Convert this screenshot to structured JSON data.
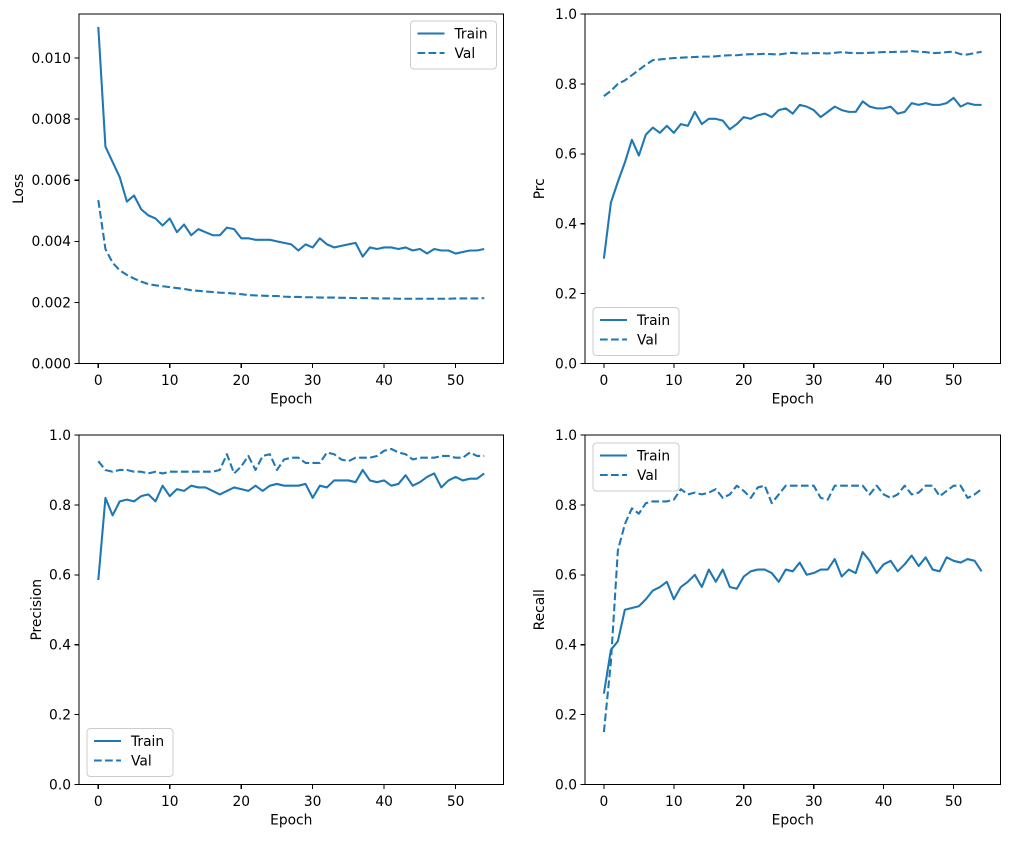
{
  "figure": {
    "background": "#ffffff",
    "line_color": "#1f77b4",
    "legend_border_color": "#cccccc",
    "text_color": "#000000"
  },
  "epochs": [
    0,
    1,
    2,
    3,
    4,
    5,
    6,
    7,
    8,
    9,
    10,
    11,
    12,
    13,
    14,
    15,
    16,
    17,
    18,
    19,
    20,
    21,
    22,
    23,
    24,
    25,
    26,
    27,
    28,
    29,
    30,
    31,
    32,
    33,
    34,
    35,
    36,
    37,
    38,
    39,
    40,
    41,
    42,
    43,
    44,
    45,
    46,
    47,
    48,
    49,
    50,
    51,
    52,
    53,
    54
  ],
  "chart_data": [
    {
      "type": "line",
      "ylabel": "Loss",
      "xlabel": "Epoch",
      "xlim": [
        -2.7,
        56.7
      ],
      "ylim": [
        0,
        0.011444
      ],
      "xticks": [
        0,
        10,
        20,
        30,
        40,
        50
      ],
      "yticks": [
        0,
        0.002,
        0.004,
        0.006,
        0.008,
        0.01
      ],
      "ytick_labels": [
        "0.000",
        "0.002",
        "0.004",
        "0.006",
        "0.008",
        "0.010"
      ],
      "legend_loc": "upper right",
      "series": [
        {
          "name": "Train",
          "style": "solid",
          "values": [
            0.01102,
            0.0071,
            0.0066,
            0.0061,
            0.0053,
            0.0055,
            0.00505,
            0.00485,
            0.00475,
            0.00452,
            0.00475,
            0.0043,
            0.00455,
            0.0042,
            0.0044,
            0.0043,
            0.0042,
            0.0042,
            0.00445,
            0.0044,
            0.0041,
            0.0041,
            0.00405,
            0.00405,
            0.00405,
            0.004,
            0.00395,
            0.0039,
            0.0037,
            0.0039,
            0.0038,
            0.0041,
            0.0039,
            0.0038,
            0.00385,
            0.0039,
            0.00395,
            0.0035,
            0.0038,
            0.00375,
            0.0038,
            0.0038,
            0.00375,
            0.0038,
            0.0037,
            0.00375,
            0.0036,
            0.00375,
            0.0037,
            0.0037,
            0.0036,
            0.00365,
            0.0037,
            0.0037,
            0.00375
          ]
        },
        {
          "name": "Val",
          "style": "dashed",
          "values": [
            0.00535,
            0.00375,
            0.0033,
            0.00305,
            0.0029,
            0.00278,
            0.00268,
            0.0026,
            0.00256,
            0.00253,
            0.0025,
            0.00247,
            0.00244,
            0.0024,
            0.00238,
            0.00236,
            0.00234,
            0.00232,
            0.00231,
            0.00229,
            0.00227,
            0.00224,
            0.00223,
            0.00222,
            0.00221,
            0.00221,
            0.00219,
            0.00218,
            0.00218,
            0.00217,
            0.00217,
            0.00216,
            0.00216,
            0.00216,
            0.00215,
            0.00215,
            0.00214,
            0.00214,
            0.00214,
            0.00213,
            0.00213,
            0.00213,
            0.00212,
            0.00212,
            0.00212,
            0.00212,
            0.00212,
            0.00212,
            0.00212,
            0.00212,
            0.00213,
            0.00213,
            0.00213,
            0.00213,
            0.00214
          ]
        }
      ]
    },
    {
      "type": "line",
      "ylabel": "Prc",
      "xlabel": "Epoch",
      "xlim": [
        -2.7,
        56.7
      ],
      "ylim": [
        0,
        1.0
      ],
      "xticks": [
        0,
        10,
        20,
        30,
        40,
        50
      ],
      "yticks": [
        0,
        0.2,
        0.4,
        0.6,
        0.8,
        1.0
      ],
      "ytick_labels": [
        "0.0",
        "0.2",
        "0.4",
        "0.6",
        "0.8",
        "1.0"
      ],
      "legend_loc": "lower left",
      "series": [
        {
          "name": "Train",
          "style": "solid",
          "values": [
            0.3,
            0.46,
            0.52,
            0.575,
            0.64,
            0.595,
            0.655,
            0.675,
            0.66,
            0.68,
            0.66,
            0.685,
            0.68,
            0.72,
            0.685,
            0.7,
            0.7,
            0.695,
            0.67,
            0.685,
            0.705,
            0.7,
            0.71,
            0.715,
            0.705,
            0.725,
            0.73,
            0.715,
            0.74,
            0.735,
            0.725,
            0.705,
            0.72,
            0.735,
            0.725,
            0.72,
            0.72,
            0.75,
            0.735,
            0.73,
            0.73,
            0.735,
            0.715,
            0.72,
            0.745,
            0.74,
            0.745,
            0.74,
            0.74,
            0.745,
            0.76,
            0.735,
            0.745,
            0.74,
            0.74
          ]
        },
        {
          "name": "Val",
          "style": "dashed",
          "values": [
            0.765,
            0.78,
            0.8,
            0.81,
            0.825,
            0.84,
            0.855,
            0.868,
            0.87,
            0.872,
            0.874,
            0.875,
            0.876,
            0.877,
            0.878,
            0.878,
            0.879,
            0.881,
            0.882,
            0.882,
            0.884,
            0.885,
            0.885,
            0.886,
            0.885,
            0.884,
            0.887,
            0.889,
            0.887,
            0.887,
            0.888,
            0.888,
            0.887,
            0.889,
            0.891,
            0.889,
            0.888,
            0.888,
            0.889,
            0.89,
            0.891,
            0.891,
            0.892,
            0.892,
            0.894,
            0.892,
            0.891,
            0.888,
            0.889,
            0.891,
            0.892,
            0.885,
            0.884,
            0.888,
            0.892
          ]
        }
      ]
    },
    {
      "type": "line",
      "ylabel": "Precision",
      "xlabel": "Epoch",
      "xlim": [
        -2.7,
        56.7
      ],
      "ylim": [
        0,
        1.0
      ],
      "xticks": [
        0,
        10,
        20,
        30,
        40,
        50
      ],
      "yticks": [
        0,
        0.2,
        0.4,
        0.6,
        0.8,
        1.0
      ],
      "ytick_labels": [
        "0.0",
        "0.2",
        "0.4",
        "0.6",
        "0.8",
        "1.0"
      ],
      "legend_loc": "lower left",
      "series": [
        {
          "name": "Train",
          "style": "solid",
          "values": [
            0.585,
            0.82,
            0.77,
            0.81,
            0.815,
            0.81,
            0.825,
            0.83,
            0.81,
            0.855,
            0.825,
            0.845,
            0.84,
            0.855,
            0.85,
            0.85,
            0.84,
            0.83,
            0.84,
            0.85,
            0.845,
            0.84,
            0.855,
            0.84,
            0.855,
            0.86,
            0.855,
            0.855,
            0.855,
            0.86,
            0.82,
            0.855,
            0.85,
            0.87,
            0.87,
            0.87,
            0.865,
            0.9,
            0.87,
            0.865,
            0.87,
            0.855,
            0.86,
            0.885,
            0.855,
            0.865,
            0.88,
            0.89,
            0.85,
            0.87,
            0.88,
            0.87,
            0.875,
            0.875,
            0.89
          ]
        },
        {
          "name": "Val",
          "style": "dashed",
          "values": [
            0.925,
            0.9,
            0.895,
            0.9,
            0.9,
            0.895,
            0.895,
            0.89,
            0.895,
            0.89,
            0.895,
            0.895,
            0.895,
            0.895,
            0.895,
            0.895,
            0.895,
            0.9,
            0.945,
            0.89,
            0.91,
            0.94,
            0.9,
            0.94,
            0.945,
            0.9,
            0.93,
            0.935,
            0.935,
            0.92,
            0.92,
            0.92,
            0.95,
            0.945,
            0.93,
            0.925,
            0.935,
            0.935,
            0.935,
            0.94,
            0.955,
            0.96,
            0.95,
            0.945,
            0.93,
            0.935,
            0.935,
            0.935,
            0.94,
            0.94,
            0.935,
            0.935,
            0.95,
            0.94,
            0.94
          ]
        }
      ]
    },
    {
      "type": "line",
      "ylabel": "Recall",
      "xlabel": "Epoch",
      "xlim": [
        -2.7,
        56.7
      ],
      "ylim": [
        0,
        1.0
      ],
      "xticks": [
        0,
        10,
        20,
        30,
        40,
        50
      ],
      "yticks": [
        0,
        0.2,
        0.4,
        0.6,
        0.8,
        1.0
      ],
      "ytick_labels": [
        "0.0",
        "0.2",
        "0.4",
        "0.6",
        "0.8",
        "1.0"
      ],
      "legend_loc": "upper left",
      "series": [
        {
          "name": "Train",
          "style": "solid",
          "values": [
            0.26,
            0.385,
            0.41,
            0.5,
            0.505,
            0.51,
            0.53,
            0.555,
            0.565,
            0.58,
            0.53,
            0.565,
            0.58,
            0.6,
            0.565,
            0.615,
            0.58,
            0.615,
            0.565,
            0.56,
            0.595,
            0.61,
            0.615,
            0.615,
            0.605,
            0.58,
            0.615,
            0.61,
            0.635,
            0.6,
            0.605,
            0.615,
            0.615,
            0.645,
            0.595,
            0.615,
            0.605,
            0.665,
            0.64,
            0.605,
            0.63,
            0.64,
            0.61,
            0.63,
            0.655,
            0.625,
            0.65,
            0.615,
            0.61,
            0.65,
            0.64,
            0.635,
            0.645,
            0.64,
            0.61
          ]
        },
        {
          "name": "Val",
          "style": "dashed",
          "values": [
            0.15,
            0.35,
            0.67,
            0.745,
            0.79,
            0.775,
            0.805,
            0.81,
            0.81,
            0.81,
            0.815,
            0.845,
            0.83,
            0.835,
            0.83,
            0.835,
            0.845,
            0.82,
            0.83,
            0.855,
            0.84,
            0.82,
            0.85,
            0.855,
            0.805,
            0.83,
            0.855,
            0.855,
            0.855,
            0.855,
            0.855,
            0.82,
            0.815,
            0.855,
            0.855,
            0.855,
            0.855,
            0.855,
            0.83,
            0.855,
            0.83,
            0.82,
            0.83,
            0.855,
            0.83,
            0.835,
            0.855,
            0.855,
            0.825,
            0.84,
            0.855,
            0.855,
            0.82,
            0.83,
            0.845
          ]
        }
      ]
    }
  ]
}
